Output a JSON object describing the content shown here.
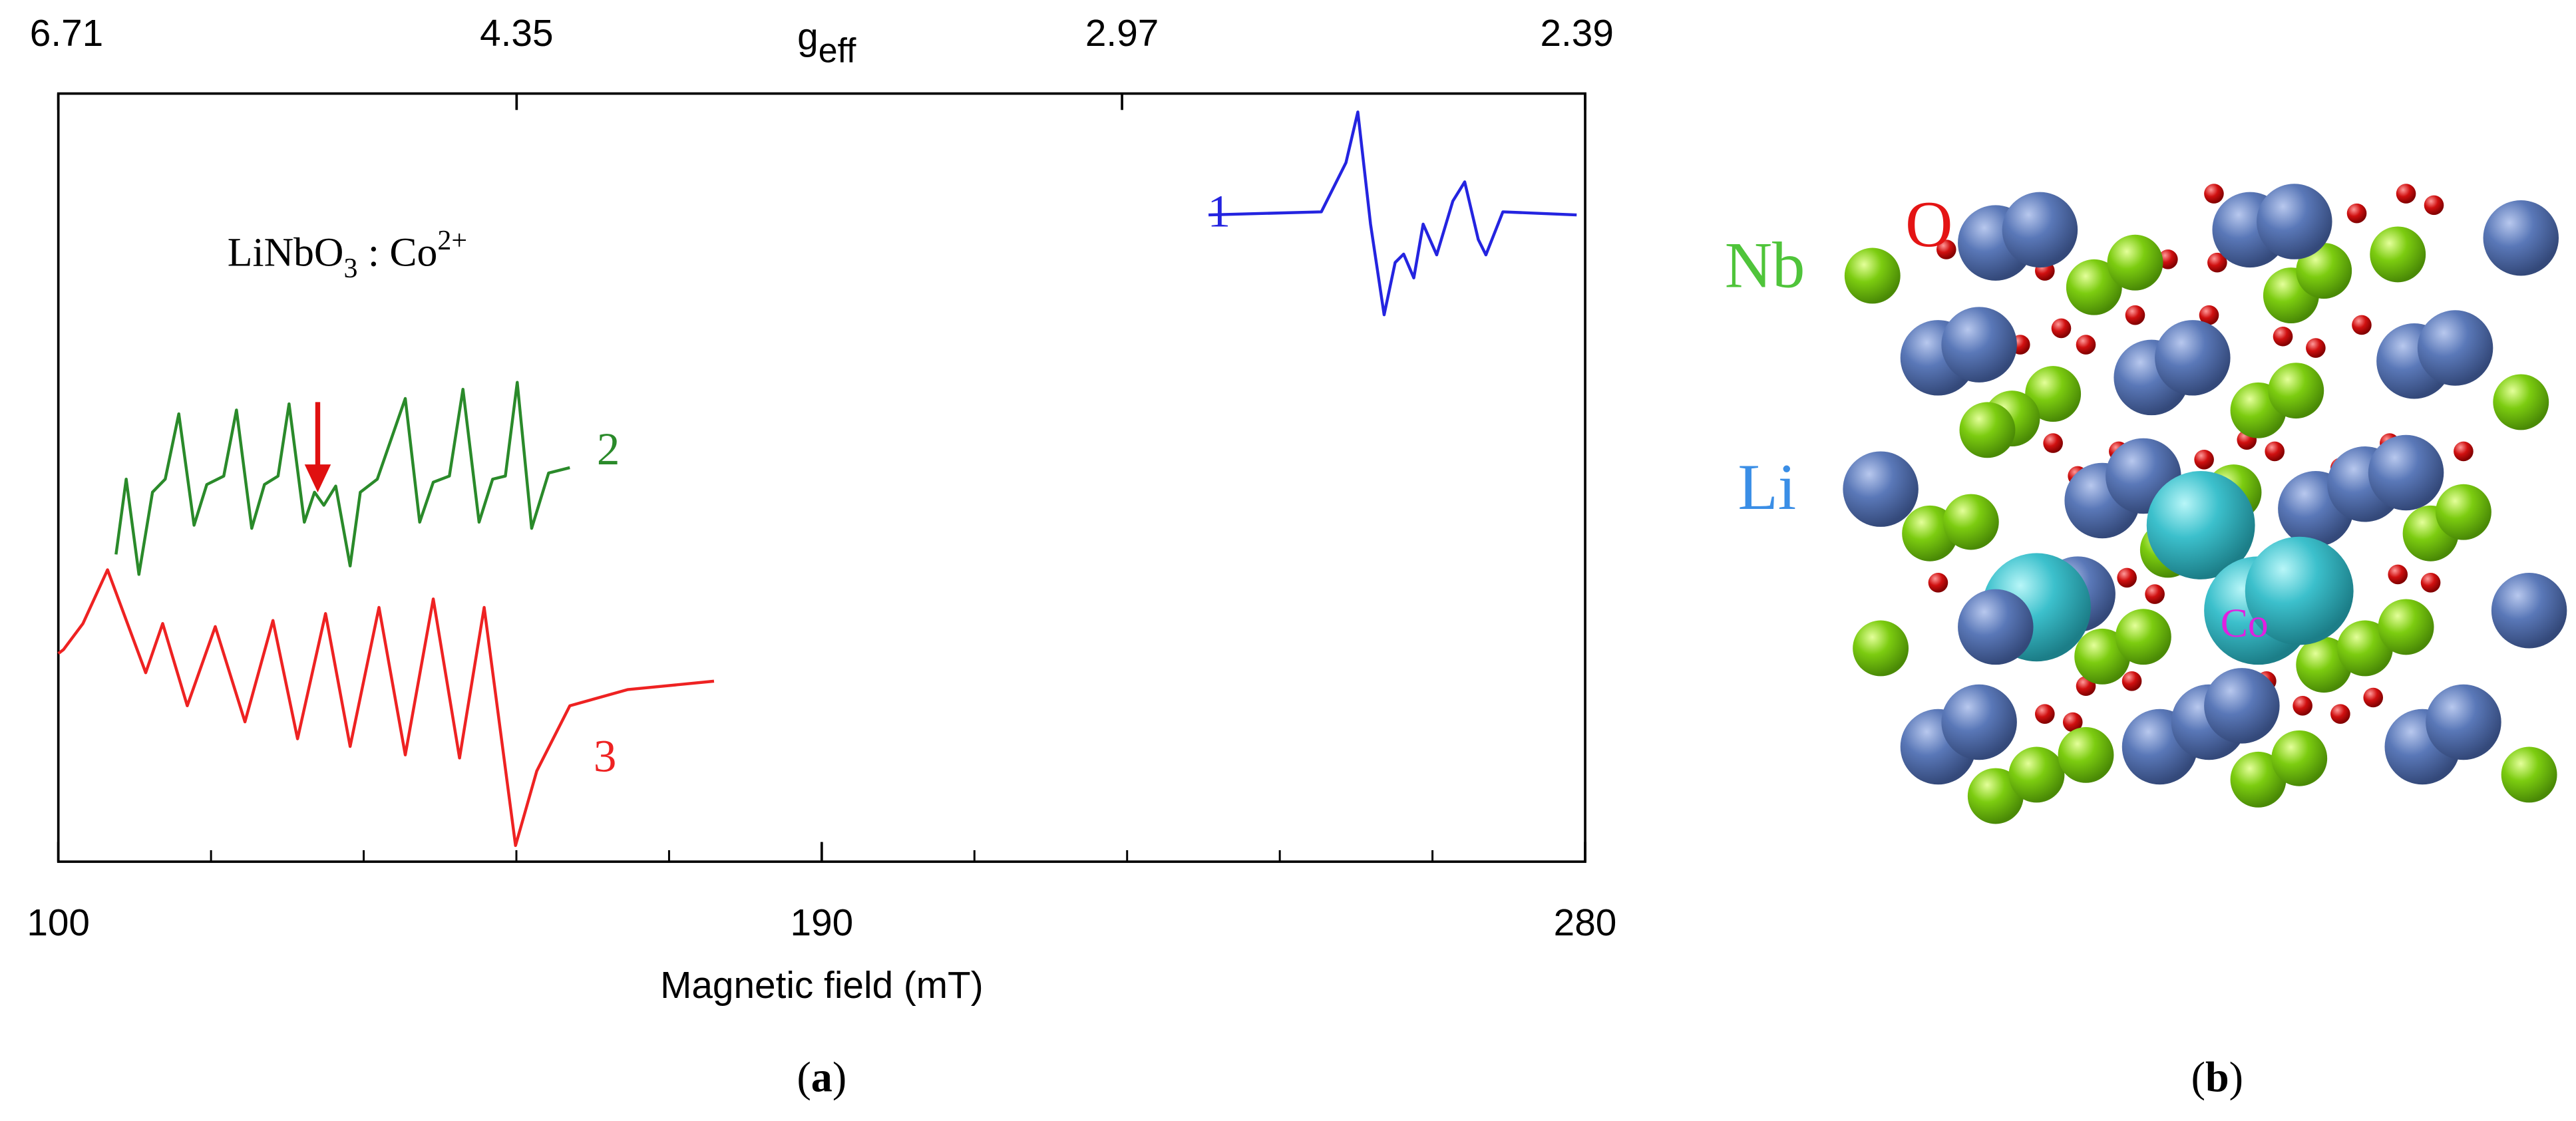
{
  "chart_data": {
    "type": "line",
    "xlabel": "Magnetic field (mT)",
    "x2label": {
      "symbol": "g",
      "subscript": "eff"
    },
    "annotation": {
      "base": "LiNbO",
      "sub": "3",
      "middle": " : Co",
      "sup": "2+"
    },
    "xlim": [
      100,
      280
    ],
    "xticks": [
      100,
      190,
      280
    ],
    "xminor": [
      118,
      136,
      154,
      172,
      208,
      226,
      244,
      262
    ],
    "x2lim": [
      6.71,
      2.39
    ],
    "x2ticks": [
      6.71,
      4.35,
      2.97,
      2.39
    ],
    "x2scale": "reciprocal",
    "ylim": [
      0,
      100
    ],
    "series": [
      {
        "name": "1",
        "color": "#2424e0",
        "x": [
          235.6,
          248.9,
          251.8,
          253.2,
          254.7,
          256.3,
          257.6,
          258.6,
          259.8,
          260.9,
          262.5,
          264.4,
          265.8,
          267.4,
          268.3,
          270.3,
          279.0
        ],
        "values": [
          84.2,
          84.6,
          91.0,
          97.6,
          83.0,
          71.2,
          78.0,
          79.1,
          76.0,
          83.0,
          79.0,
          86.0,
          88.5,
          81.0,
          79.0,
          84.6,
          84.2
        ]
      },
      {
        "name": "2",
        "color": "#2a8a2a",
        "x": [
          106.8,
          108.0,
          109.5,
          111.1,
          112.6,
          114.2,
          116.0,
          117.5,
          119.5,
          121.0,
          122.8,
          124.3,
          125.9,
          127.2,
          129.0,
          130.2,
          131.3,
          132.7,
          134.4,
          135.6,
          137.6,
          140.9,
          142.6,
          144.2,
          146.1,
          147.7,
          149.6,
          151.2,
          152.7,
          154.1,
          155.8,
          157.8,
          160.3
        ],
        "values": [
          40.0,
          49.8,
          37.4,
          48.1,
          49.8,
          58.3,
          43.8,
          49.1,
          50.2,
          58.8,
          43.4,
          49.1,
          50.2,
          59.6,
          44.2,
          48.1,
          46.4,
          48.9,
          38.5,
          48.1,
          49.8,
          60.3,
          44.2,
          49.4,
          50.2,
          61.5,
          44.2,
          49.8,
          50.2,
          62.4,
          43.4,
          50.6,
          51.3
        ]
      },
      {
        "name": "3",
        "color": "#ee2222",
        "x": [
          100.0,
          100.6,
          102.9,
          105.8,
          110.3,
          112.3,
          115.2,
          118.5,
          122.0,
          125.3,
          128.2,
          131.5,
          134.4,
          137.8,
          140.9,
          144.2,
          147.3,
          150.2,
          153.9,
          156.4,
          160.3,
          167.1,
          177.3
        ],
        "values": [
          27.1,
          27.6,
          31.0,
          38.0,
          24.6,
          31.0,
          20.3,
          30.6,
          18.2,
          31.4,
          16.0,
          32.3,
          15.0,
          33.1,
          13.9,
          34.2,
          13.5,
          33.1,
          2.1,
          11.8,
          20.3,
          22.4,
          23.5
        ]
      }
    ]
  },
  "panel_labels": [
    "a",
    "b"
  ],
  "structure": {
    "labels": [
      "O",
      "Nb",
      "Li",
      "Co"
    ]
  }
}
